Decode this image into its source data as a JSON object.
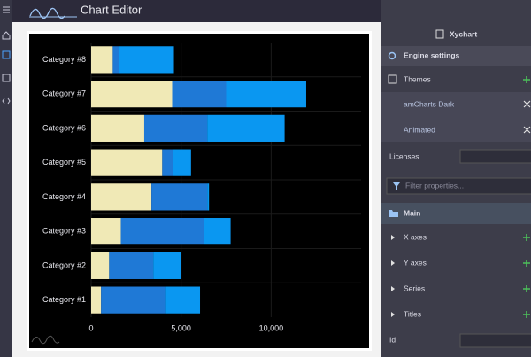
{
  "app": {
    "title": "Chart Editor"
  },
  "panel": {
    "header": "Xychart",
    "engine": "Engine settings",
    "themes": "Themes",
    "theme_items": [
      "amCharts Dark",
      "Animated"
    ],
    "licenses": "Licenses",
    "filter_placeholder": "Filter properties...",
    "main": "Main",
    "properties": [
      "X axes",
      "Y axes",
      "Series",
      "Titles"
    ],
    "id": "Id"
  },
  "chart_data": {
    "type": "stacked-bar",
    "orientation": "horizontal",
    "categories": [
      "Category #1",
      "Category #2",
      "Category #3",
      "Category #4",
      "Category #5",
      "Category #6",
      "Category #7",
      "Category #8"
    ],
    "series": [
      {
        "color": "#f0e9b6",
        "values": [
          550,
          1000,
          1650,
          3350,
          3950,
          2950,
          4500,
          1200
        ]
      },
      {
        "color": "#1f79d6",
        "values": [
          3600,
          2450,
          4600,
          3100,
          600,
          3500,
          3000,
          350
        ]
      },
      {
        "color": "#0a97f1",
        "values": [
          1900,
          1550,
          1500,
          100,
          1000,
          4300,
          4450,
          3050
        ]
      }
    ],
    "xlim": [
      0,
      15000
    ],
    "xticks": [
      0,
      {
        "value": 5000,
        "label": "5,000"
      },
      {
        "value": 10000,
        "label": "10,000"
      }
    ],
    "grid": true
  }
}
